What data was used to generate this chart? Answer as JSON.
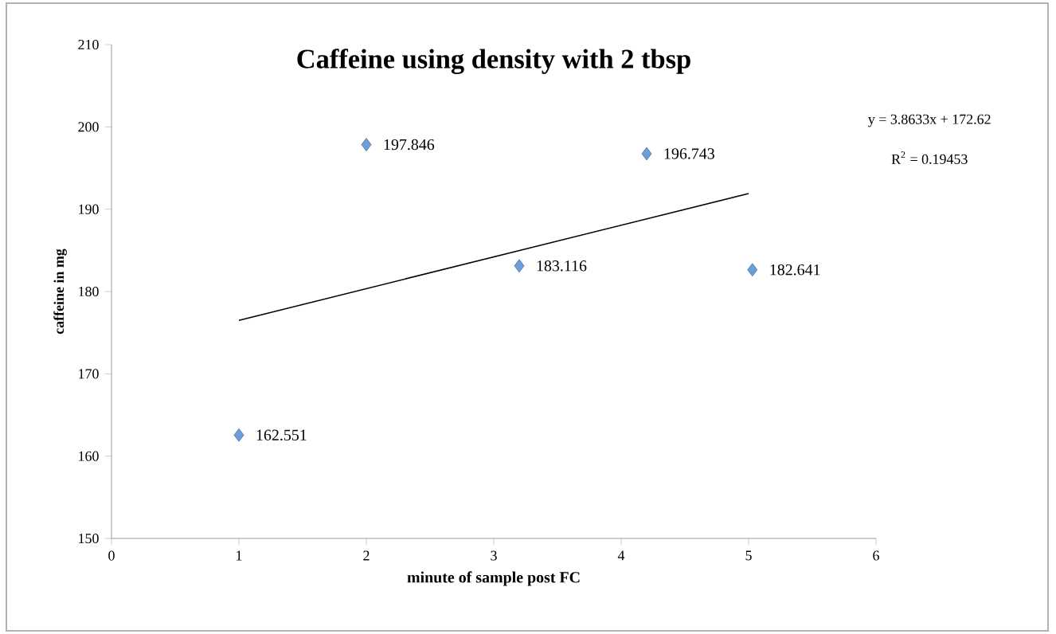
{
  "chart_data": {
    "type": "scatter",
    "title": "Caffeine using density with 2 tbsp",
    "xlabel": "minute of sample post FC",
    "ylabel": "caffeine in mg",
    "xlim": [
      0,
      6
    ],
    "xticks": [
      0,
      1,
      2,
      3,
      4,
      5,
      6
    ],
    "ylim": [
      150,
      210
    ],
    "yticks": [
      150,
      160,
      170,
      180,
      190,
      200,
      210
    ],
    "grid": false,
    "series": [
      {
        "marker": "diamond",
        "color": "#6a9fd8",
        "x": [
          1,
          2,
          3.2,
          4.2,
          5.03
        ],
        "values": [
          162.551,
          197.846,
          183.116,
          196.743,
          182.641
        ],
        "value_labels": [
          "162.551",
          "197.846",
          "183.116",
          "196.743",
          "182.641"
        ]
      },
      {
        "type": "line",
        "marker": "none",
        "color": "#000000",
        "x": [
          1,
          5
        ],
        "values": [
          176.5,
          191.9
        ]
      }
    ],
    "annotations": [
      "y = 3.8633x + 172.62",
      "R$^{2}$ = 0.19453"
    ]
  }
}
